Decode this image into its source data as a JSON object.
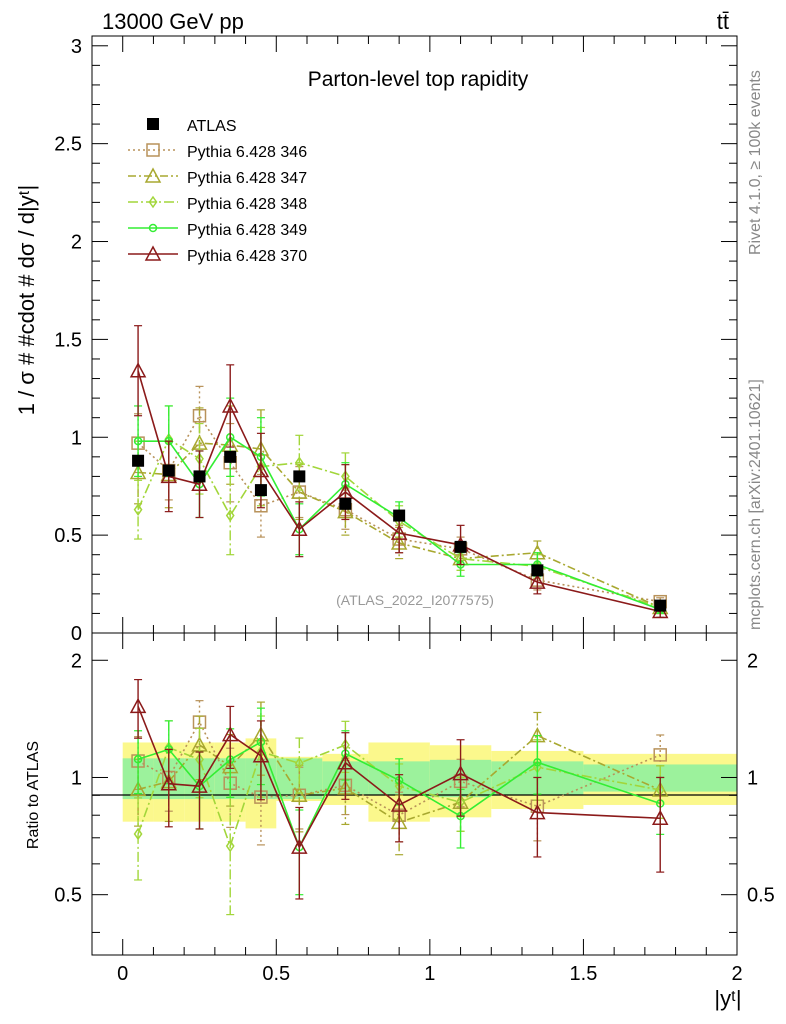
{
  "header": {
    "energy_label": "13000 GeV pp",
    "process_label": "tt̄",
    "side_rivet": "Rivet 4.1.0, ≥ 100k events",
    "side_site": "mcplots.cern.ch [arXiv:2401.10621]"
  },
  "chart_data": {
    "type": "line",
    "title": "Parton-level top rapidity",
    "watermark": "(ATLAS_2022_I2077575)",
    "ylabel": "1 / σ # #cdot # dσ / d|y^t|",
    "ylabel_display": "1 / σ # #cdot # dσ / d|yᵗ|",
    "xlabel": "|y^t|",
    "xlabel_display": "|yᵗ|",
    "ratio_ylabel": "Ratio to ATLAS",
    "xlim": [
      -0.1,
      2.0
    ],
    "ylim": [
      0,
      3.05
    ],
    "ratio_ylim": [
      0.35,
      2.35
    ],
    "x_ticks": [
      "0",
      "0.5",
      "1",
      "1.5",
      "2"
    ],
    "y_ticks": [
      "0",
      "0.5",
      "1",
      "1.5",
      "2",
      "2.5",
      "3"
    ],
    "ratio_y_ticks": [
      "0.5",
      "1",
      "2"
    ],
    "bin_edges": [
      0,
      0.1,
      0.2,
      0.3,
      0.4,
      0.5,
      0.65,
      0.8,
      1.0,
      1.2,
      1.5,
      2.0
    ],
    "x": [
      0.05,
      0.15,
      0.25,
      0.35,
      0.45,
      0.575,
      0.725,
      0.9,
      1.1,
      1.35,
      1.75
    ],
    "data": {
      "name": "ATLAS",
      "values": [
        0.88,
        0.83,
        0.8,
        0.9,
        0.73,
        0.8,
        0.66,
        0.6,
        0.44,
        0.32,
        0.14
      ],
      "errors": [
        0.03,
        0.03,
        0.03,
        0.03,
        0.03,
        0.03,
        0.03,
        0.02,
        0.02,
        0.015,
        0.01
      ]
    },
    "ratio_band_inner": [
      0.12,
      0.12,
      0.12,
      0.12,
      0.12,
      0.12,
      0.1,
      0.1,
      0.11,
      0.1,
      0.08
    ],
    "ratio_band_outer": [
      0.23,
      0.23,
      0.23,
      0.23,
      0.26,
      0.13,
      0.15,
      0.23,
      0.21,
      0.17,
      0.15
    ],
    "series": [
      {
        "name": "Pythia 6.428 346",
        "color": "#b8925a",
        "dash": "2,3",
        "marker": "square",
        "values": [
          0.97,
          0.83,
          1.11,
          0.87,
          0.65,
          0.72,
          0.63,
          0.48,
          0.43,
          0.27,
          0.16
        ],
        "errors": [
          0.15,
          0.15,
          0.15,
          0.2,
          0.16,
          0.13,
          0.1,
          0.07,
          0.06,
          0.05,
          0.02
        ]
      },
      {
        "name": "Pythia 6.428 347",
        "color": "#a8a830",
        "dash": "8,3,2,3",
        "marker": "triangle",
        "values": [
          0.82,
          0.81,
          0.97,
          0.96,
          0.94,
          0.72,
          0.62,
          0.46,
          0.38,
          0.41,
          0.13
        ],
        "errors": [
          0.16,
          0.17,
          0.18,
          0.2,
          0.2,
          0.14,
          0.12,
          0.08,
          0.06,
          0.06,
          0.02
        ]
      },
      {
        "name": "Pythia 6.428 348",
        "color": "#a2d63a",
        "dash": "10,3,2,3",
        "marker": "diamond",
        "values": [
          0.63,
          0.99,
          0.89,
          0.6,
          0.85,
          0.87,
          0.8,
          0.57,
          0.38,
          0.34,
          0.13
        ],
        "errors": [
          0.15,
          0.17,
          0.18,
          0.2,
          0.2,
          0.14,
          0.12,
          0.08,
          0.06,
          0.06,
          0.02
        ]
      },
      {
        "name": "Pythia 6.428 349",
        "color": "#33ee33",
        "dash": "",
        "marker": "circle",
        "values": [
          0.98,
          0.98,
          0.76,
          1.0,
          0.9,
          0.53,
          0.76,
          0.59,
          0.35,
          0.35,
          0.12
        ],
        "errors": [
          0.18,
          0.18,
          0.17,
          0.2,
          0.2,
          0.13,
          0.11,
          0.08,
          0.06,
          0.06,
          0.02
        ]
      },
      {
        "name": "Pythia 6.428 370",
        "color": "#8b1a1a",
        "dash": "",
        "marker": "triangle",
        "values": [
          1.34,
          0.8,
          0.76,
          1.16,
          0.83,
          0.53,
          0.72,
          0.51,
          0.45,
          0.26,
          0.11
        ],
        "errors": [
          0.23,
          0.18,
          0.17,
          0.21,
          0.19,
          0.14,
          0.14,
          0.1,
          0.1,
          0.06,
          0.03
        ]
      }
    ]
  }
}
